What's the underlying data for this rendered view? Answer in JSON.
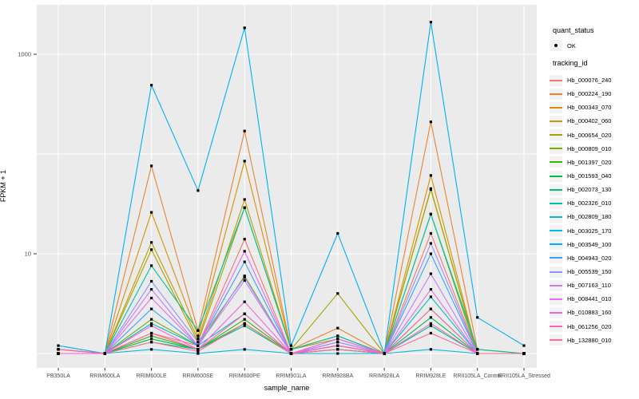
{
  "figure": {
    "panel_bg": "#EBEBEB",
    "grid_color": "#FFFFFF",
    "tick_color": "#333333",
    "tick_label_color": "#4D4D4D",
    "point_color": "#000000",
    "legend_key_bg": "#F2F2F2"
  },
  "axes": {
    "y_tick_labels": [
      "1000",
      "10"
    ],
    "y_tick_values": [
      1000,
      10
    ],
    "y_grid_values": [
      1,
      10,
      100,
      1000
    ]
  },
  "legend": {
    "quant_title": "quant_status",
    "quant_item_label": "OK",
    "tracking_title": "tracking_id"
  },
  "chart_data": {
    "type": "line",
    "title": "",
    "xlabel": "sample_name",
    "ylabel": "FPKM + 1",
    "y_scale": "log10",
    "ylim": [
      0.72,
      3100
    ],
    "grid": true,
    "legend_position": "right",
    "point_marker": "black point (quant_status = OK) at every sample for every series",
    "categories": [
      "PB350LA",
      "RRIM600LA",
      "RRIM600LE",
      "RRIM600SE",
      "RRIM600PE",
      "RRIM901LA",
      "RRIM928BA",
      "RRIM928LA",
      "RRIM928LE",
      "RRII105LA_Control",
      "RRII105LA_Stressed"
    ],
    "series": [
      {
        "name": "Hb_000076_240",
        "color": "#F8766D",
        "values": [
          1.1,
          1,
          1.6,
          1.2,
          14,
          1,
          1.2,
          1,
          16,
          1,
          1
        ]
      },
      {
        "name": "Hb_000224_190",
        "color": "#EA8331",
        "values": [
          1.1,
          1,
          76,
          1.7,
          170,
          1.1,
          1.8,
          1,
          210,
          1.1,
          1
        ]
      },
      {
        "name": "Hb_000343_070",
        "color": "#D89000",
        "values": [
          1.1,
          1,
          26,
          1.5,
          85,
          1.1,
          1.5,
          1,
          61,
          1,
          1
        ]
      },
      {
        "name": "Hb_000402_060",
        "color": "#C09B00",
        "values": [
          1,
          1,
          13,
          1.4,
          35,
          1.1,
          1.4,
          1,
          45,
          1,
          1
        ]
      },
      {
        "name": "Hb_000654_020",
        "color": "#A3A500",
        "values": [
          1,
          1,
          11,
          1.3,
          29,
          1.1,
          4,
          1,
          44,
          1,
          1
        ]
      },
      {
        "name": "Hb_000809_010",
        "color": "#7CAE00",
        "values": [
          1,
          1,
          2.2,
          1.2,
          6,
          1,
          1.3,
          1,
          25,
          1,
          1
        ]
      },
      {
        "name": "Hb_001397_020",
        "color": "#39B600",
        "values": [
          1,
          1,
          1.5,
          1.1,
          2.2,
          1,
          1.2,
          1,
          2.8,
          1,
          1
        ]
      },
      {
        "name": "Hb_001593_040",
        "color": "#00BB4E",
        "values": [
          1,
          1,
          1.4,
          1.1,
          2,
          1,
          1.1,
          1,
          2.3,
          1,
          1
        ]
      },
      {
        "name": "Hb_002073_130",
        "color": "#00BF7D",
        "values": [
          1,
          1,
          1.3,
          1.1,
          1.9,
          1,
          1.1,
          1,
          1.9,
          1,
          1
        ]
      },
      {
        "name": "Hb_002326_010",
        "color": "#00C1A3",
        "values": [
          1.1,
          1,
          7.6,
          1.7,
          29,
          1.1,
          1.5,
          1,
          25,
          1.1,
          1
        ]
      },
      {
        "name": "Hb_002809_180",
        "color": "#00BFC4",
        "values": [
          1,
          1,
          2,
          1.2,
          2.5,
          1,
          1.2,
          1,
          3.7,
          1,
          1
        ]
      },
      {
        "name": "Hb_003025_170",
        "color": "#00BAE0",
        "values": [
          1,
          1,
          1.1,
          1,
          1.1,
          1,
          1,
          1,
          1.1,
          1,
          1
        ]
      },
      {
        "name": "Hb_003549_100",
        "color": "#00B0F6",
        "values": [
          1.2,
          1,
          490,
          43,
          1840,
          1.2,
          16,
          1,
          2100,
          2.3,
          1.2
        ]
      },
      {
        "name": "Hb_004943_020",
        "color": "#35A2FF",
        "values": [
          1,
          1,
          2.8,
          1.2,
          8.3,
          1,
          1.3,
          1,
          10,
          1,
          1
        ]
      },
      {
        "name": "Hb_005539_150",
        "color": "#9590FF",
        "values": [
          1,
          1,
          5.3,
          1.3,
          5.8,
          1,
          1.4,
          1,
          12.7,
          1,
          1
        ]
      },
      {
        "name": "Hb_007163_110",
        "color": "#C77CFF",
        "values": [
          1,
          1,
          4.4,
          1.2,
          5.4,
          1,
          1.3,
          1,
          6.3,
          1,
          1
        ]
      },
      {
        "name": "Hb_008441_010",
        "color": "#E76BF3",
        "values": [
          1,
          1,
          3.6,
          1.2,
          10.6,
          1,
          1.4,
          1,
          4.4,
          1,
          1
        ]
      },
      {
        "name": "Hb_010883_160",
        "color": "#FA62DB",
        "values": [
          1,
          1,
          1.9,
          1.1,
          3.3,
          1,
          1.2,
          1,
          2,
          1,
          1
        ]
      },
      {
        "name": "Hb_061256_020",
        "color": "#FF62BC",
        "values": [
          1.1,
          1,
          1.6,
          1.1,
          2.5,
          1,
          1.2,
          1,
          2.8,
          1,
          1
        ]
      },
      {
        "name": "Hb_132880_010",
        "color": "#FF6A98",
        "values": [
          1.1,
          1,
          1.3,
          1.05,
          2,
          1,
          1.1,
          1,
          1.6,
          1,
          1
        ]
      }
    ]
  }
}
